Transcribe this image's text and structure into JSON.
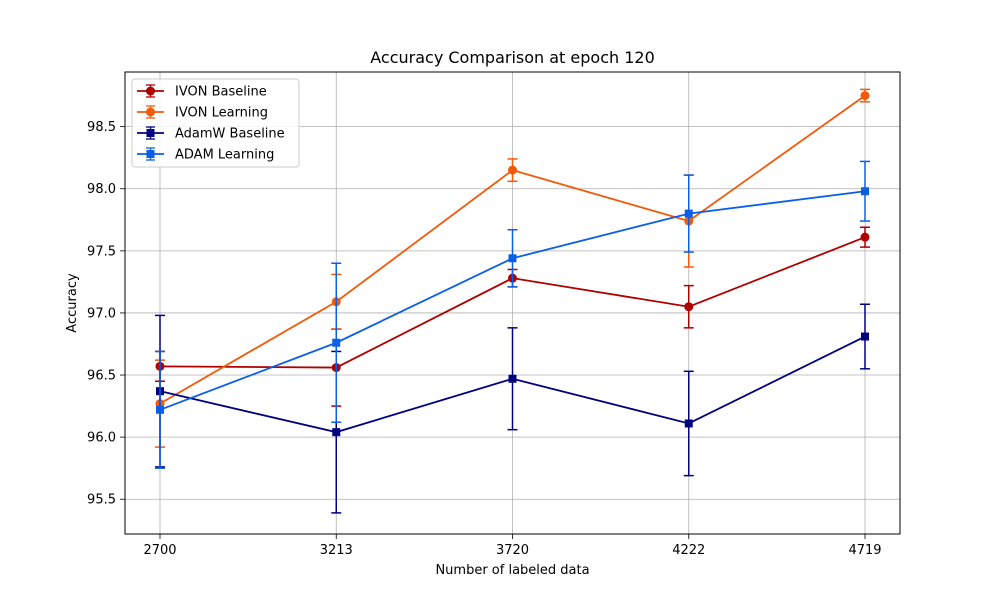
{
  "chart_data": {
    "type": "line",
    "title": "Accuracy Comparison at epoch 120",
    "xlabel": "Number of labeled data",
    "ylabel": "Accuracy",
    "categories": [
      "2700",
      "3213",
      "3720",
      "4222",
      "4719"
    ],
    "ylim": [
      95.22,
      98.94
    ],
    "yticks": [
      95.5,
      96.0,
      96.5,
      97.0,
      97.5,
      98.0,
      98.5
    ],
    "ytick_labels": [
      "95.5",
      "96.0",
      "96.5",
      "97.0",
      "97.5",
      "98.0",
      "98.5"
    ],
    "grid": true,
    "legend": "top-left",
    "series": [
      {
        "name": "IVON Baseline",
        "color": "#b00000",
        "marker": "circle",
        "values": [
          96.57,
          96.56,
          97.28,
          97.05,
          97.61
        ],
        "errors": [
          0.12,
          0.31,
          0.07,
          0.17,
          0.08
        ]
      },
      {
        "name": "IVON Learning",
        "color": "#f25a0a",
        "marker": "circle",
        "values": [
          96.27,
          97.09,
          98.15,
          97.74,
          98.75
        ],
        "errors": [
          0.35,
          0.22,
          0.09,
          0.37,
          0.05
        ]
      },
      {
        "name": "AdamW Baseline",
        "color": "#000080",
        "marker": "square",
        "values": [
          96.37,
          96.04,
          96.47,
          96.11,
          96.81
        ],
        "errors": [
          0.61,
          0.65,
          0.41,
          0.42,
          0.26
        ]
      },
      {
        "name": "ADAM Learning",
        "color": "#0a5fe6",
        "marker": "square",
        "values": [
          96.22,
          96.76,
          97.44,
          97.8,
          97.98
        ],
        "errors": [
          0.47,
          0.64,
          0.23,
          0.31,
          0.24
        ]
      }
    ]
  }
}
